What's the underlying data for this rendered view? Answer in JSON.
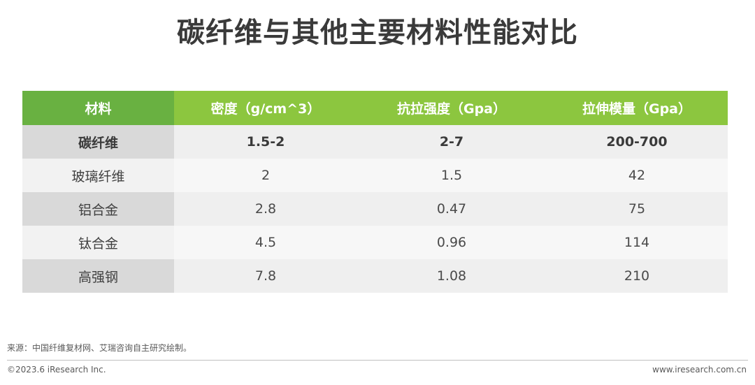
{
  "title": "碳纤维与其他主要材料性能对比",
  "chart_data": {
    "type": "table",
    "title": "碳纤维与其他主要材料性能对比",
    "columns": [
      "材料",
      "密度（g/cm^3）",
      "抗拉强度（Gpa）",
      "拉伸模量（Gpa）"
    ],
    "rows": [
      [
        "碳纤维",
        "1.5-2",
        "2-7",
        "200-700"
      ],
      [
        "玻璃纤维",
        "2",
        "1.5",
        "42"
      ],
      [
        "铝合金",
        "2.8",
        "0.47",
        "75"
      ],
      [
        "钛合金",
        "4.5",
        "0.96",
        "114"
      ],
      [
        "高强钢",
        "7.8",
        "1.08",
        "210"
      ]
    ],
    "highlighted_row": 0
  },
  "colors": {
    "header_first": "#69b141",
    "header": "#8cc63f",
    "row_head": "#d9d9d9",
    "row_alt": "#f7f7f7"
  },
  "footer": {
    "source": "来源：中国纤维复材网、艾瑞咨询自主研究绘制。",
    "copyright": "©2023.6 iResearch Inc.",
    "website": "www.iresearch.com.cn"
  }
}
